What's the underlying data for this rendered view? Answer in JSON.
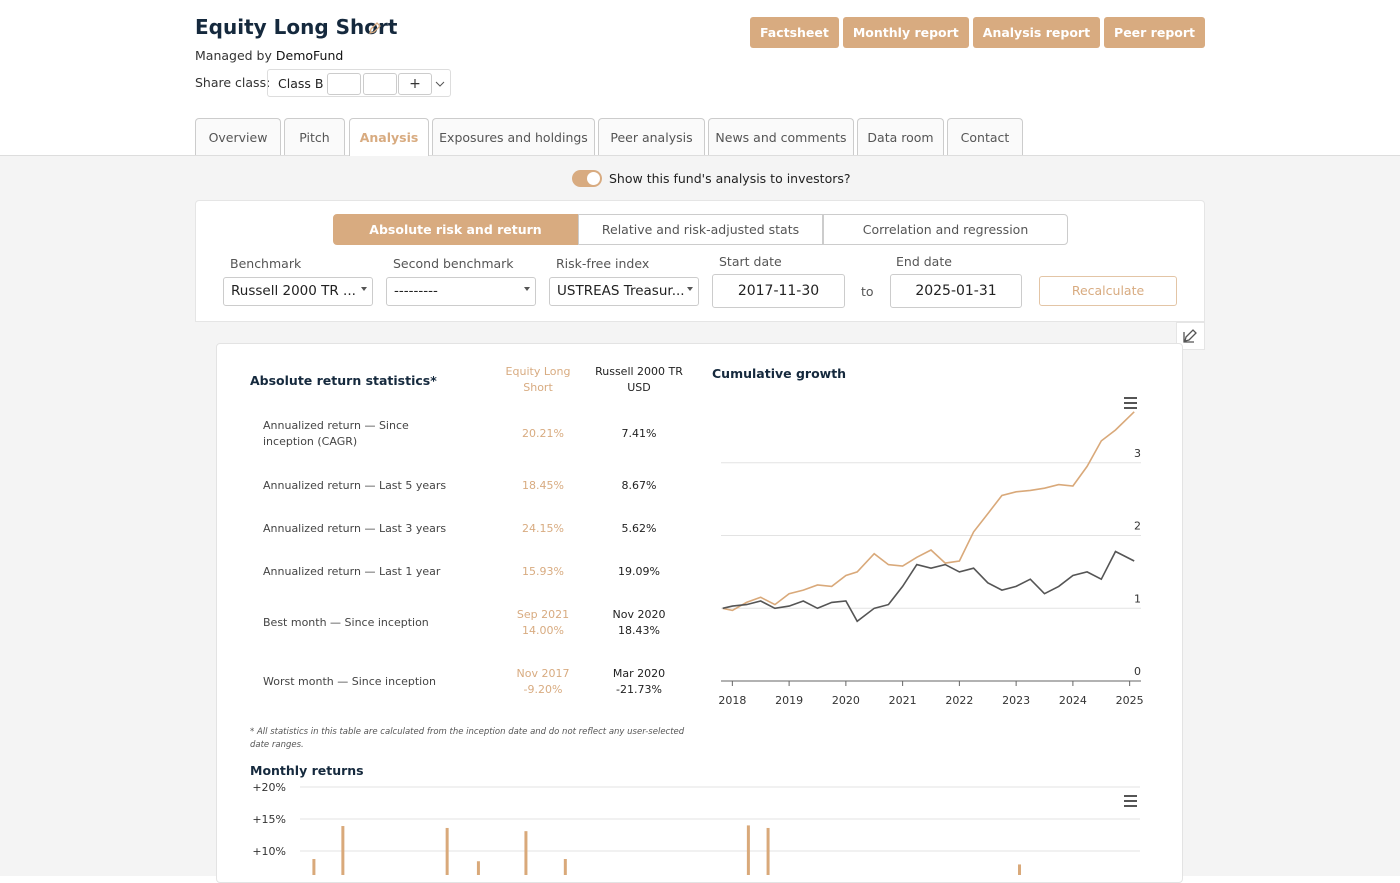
{
  "header": {
    "title": "Equity Long Short",
    "managed_by_label": "Managed by",
    "manager": "DemoFund",
    "share_class_label": "Share class:",
    "share_class": "Class B"
  },
  "report_buttons": [
    "Factsheet",
    "Monthly report",
    "Analysis report",
    "Peer report"
  ],
  "tabs": [
    "Overview",
    "Pitch",
    "Analysis",
    "Exposures and holdings",
    "Peer analysis",
    "News and comments",
    "Data room",
    "Contact"
  ],
  "active_tab": 2,
  "toggle": {
    "label": "Show this fund's analysis to investors?",
    "on": true
  },
  "subtabs": [
    "Absolute risk and return",
    "Relative and risk-adjusted stats",
    "Correlation and regression"
  ],
  "active_subtab": 0,
  "form": {
    "fields": [
      {
        "label": "Benchmark",
        "value": "Russell 2000 TR ..."
      },
      {
        "label": "Second benchmark",
        "value": "---------"
      },
      {
        "label": "Risk-free index",
        "value": "USTREAS Treasur..."
      }
    ],
    "start_date_label": "Start date",
    "start_date": "2017-11-30",
    "to": "to",
    "end_date_label": "End date",
    "end_date": "2025-01-31",
    "recalculate": "Recalculate"
  },
  "stats": {
    "title": "Absolute return statistics*",
    "columns": [
      "Equity Long Short",
      "Russell 2000 TR USD"
    ],
    "rows": [
      {
        "label": "Annualized return — Since inception (CAGR)",
        "cells": [
          [
            "20.21%"
          ],
          [
            "7.41%"
          ]
        ]
      },
      {
        "label": "Annualized return — Last 5 years",
        "cells": [
          [
            "18.45%"
          ],
          [
            "8.67%"
          ]
        ]
      },
      {
        "label": "Annualized return — Last 3 years",
        "cells": [
          [
            "24.15%"
          ],
          [
            "5.62%"
          ]
        ]
      },
      {
        "label": "Annualized return — Last 1 year",
        "cells": [
          [
            "15.93%"
          ],
          [
            "19.09%"
          ]
        ]
      },
      {
        "label": "Best month — Since inception",
        "cells": [
          [
            "Sep 2021",
            "14.00%"
          ],
          [
            "Nov 2020",
            "18.43%"
          ]
        ]
      },
      {
        "label": "Worst month — Since inception",
        "cells": [
          [
            "Nov 2017",
            "-9.20%"
          ],
          [
            "Mar 2020",
            "-21.73%"
          ]
        ]
      }
    ],
    "footnote": "* All statistics in this table are calculated from the inception date and do not reflect any user-selected date ranges."
  },
  "cumulative_growth": {
    "type": "line",
    "title": "Cumulative growth",
    "xlim": [
      2017.8,
      2025.2
    ],
    "xticks": [
      2018,
      2019,
      2020,
      2021,
      2022,
      2023,
      2024,
      2025
    ],
    "ylim": [
      0,
      4
    ],
    "yticks": [
      0,
      1,
      2,
      3
    ],
    "grid": true,
    "series": [
      {
        "color": "#d9a97a",
        "x": [
          2017.83,
          2018.0,
          2018.25,
          2018.5,
          2018.75,
          2019.0,
          2019.25,
          2019.5,
          2019.75,
          2020.0,
          2020.2,
          2020.5,
          2020.75,
          2021.0,
          2021.25,
          2021.5,
          2021.75,
          2022.0,
          2022.25,
          2022.5,
          2022.75,
          2023.0,
          2023.25,
          2023.5,
          2023.75,
          2024.0,
          2024.25,
          2024.5,
          2024.75,
          2025.08
        ],
        "values": [
          1.0,
          0.97,
          1.08,
          1.15,
          1.05,
          1.2,
          1.25,
          1.32,
          1.3,
          1.45,
          1.5,
          1.75,
          1.6,
          1.58,
          1.7,
          1.8,
          1.62,
          1.65,
          2.05,
          2.3,
          2.55,
          2.6,
          2.62,
          2.65,
          2.7,
          2.68,
          2.95,
          3.3,
          3.45,
          3.7
        ]
      },
      {
        "color": "#555555",
        "x": [
          2017.83,
          2018.0,
          2018.25,
          2018.5,
          2018.75,
          2019.0,
          2019.25,
          2019.5,
          2019.75,
          2020.0,
          2020.2,
          2020.5,
          2020.75,
          2021.0,
          2021.25,
          2021.5,
          2021.75,
          2022.0,
          2022.25,
          2022.5,
          2022.75,
          2023.0,
          2023.25,
          2023.5,
          2023.75,
          2024.0,
          2024.25,
          2024.5,
          2024.75,
          2025.08
        ],
        "values": [
          1.0,
          1.03,
          1.05,
          1.1,
          1.0,
          1.03,
          1.1,
          1.0,
          1.08,
          1.1,
          0.82,
          1.0,
          1.05,
          1.3,
          1.6,
          1.55,
          1.6,
          1.5,
          1.55,
          1.35,
          1.25,
          1.3,
          1.4,
          1.2,
          1.3,
          1.45,
          1.5,
          1.4,
          1.78,
          1.65
        ]
      }
    ]
  },
  "monthly_returns": {
    "type": "bar",
    "title": "Monthly returns",
    "xlim": [
      2017.83,
      2025.08
    ],
    "ylim": [
      6.25,
      20
    ],
    "yticks": [
      {
        "value": 20,
        "label": "+20%"
      },
      {
        "value": 15,
        "label": "+15%"
      },
      {
        "value": 10,
        "label": "+10%"
      }
    ],
    "grid": true,
    "color": "#d9a97a",
    "x": [
      2017.95,
      2018.2,
      2019.1,
      2019.37,
      2019.78,
      2020.12,
      2021.7,
      2021.87,
      2024.04
    ],
    "values": [
      8.75,
      13.9,
      13.6,
      8.4,
      13.1,
      8.75,
      14.0,
      13.6,
      7.9
    ]
  }
}
